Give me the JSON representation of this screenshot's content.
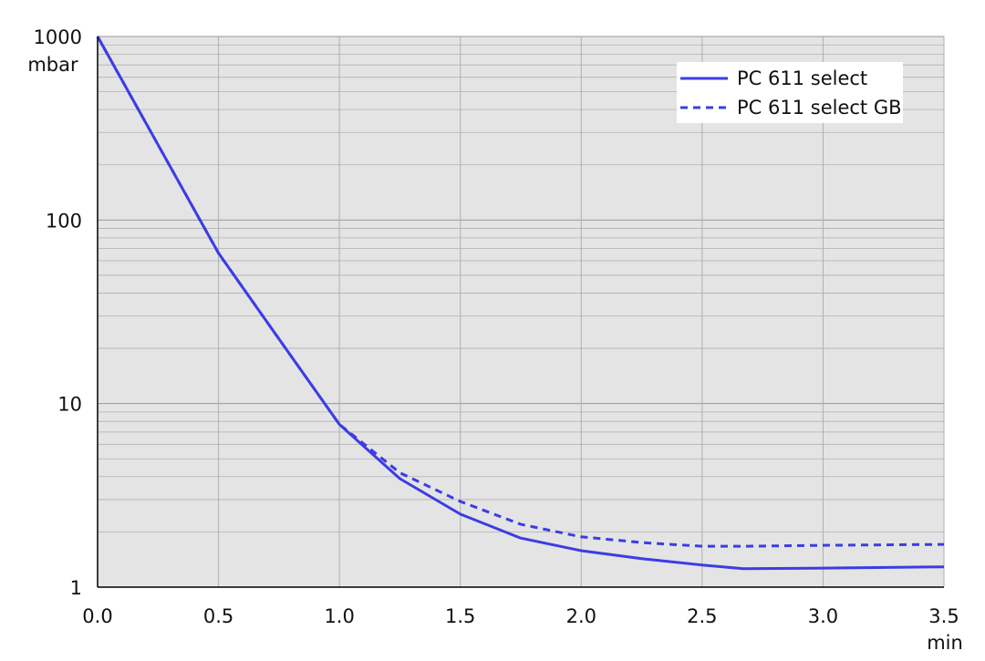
{
  "chart_data": {
    "type": "line",
    "y_label": "mbar",
    "x_label": "min",
    "x": [
      0,
      0.25,
      0.5,
      0.75,
      1,
      1.25,
      1.5,
      1.75,
      2,
      2.25,
      2.5,
      2.67,
      3,
      3.5
    ],
    "series": [
      {
        "name": "PC 611 select",
        "color": "#3c3ce6",
        "dash": false,
        "values": [
          1000,
          257,
          66,
          22.5,
          7.7,
          3.9,
          2.5,
          1.85,
          1.58,
          1.43,
          1.32,
          1.26,
          1.27,
          1.29
        ]
      },
      {
        "name": "PC 611 select GB",
        "color": "#3c3ce6",
        "dash": true,
        "values": [
          1000,
          257,
          66,
          22.5,
          7.7,
          4.2,
          2.93,
          2.2,
          1.88,
          1.75,
          1.67,
          1.67,
          1.69,
          1.71
        ]
      }
    ],
    "xlim": [
      0,
      3.5
    ],
    "xticks": [
      {
        "value": 0,
        "label": "0.0"
      },
      0.5,
      {
        "value": 1,
        "label": "1.0"
      },
      1.5,
      {
        "value": 2,
        "label": "2.0"
      },
      2.5,
      {
        "value": 3,
        "label": "3.0"
      },
      3.5
    ],
    "ylim": [
      1,
      1000
    ],
    "yticks": [
      1,
      10,
      100,
      1000
    ],
    "ylog": true,
    "grid": true,
    "minor_grid": true,
    "legend": "top-right"
  }
}
